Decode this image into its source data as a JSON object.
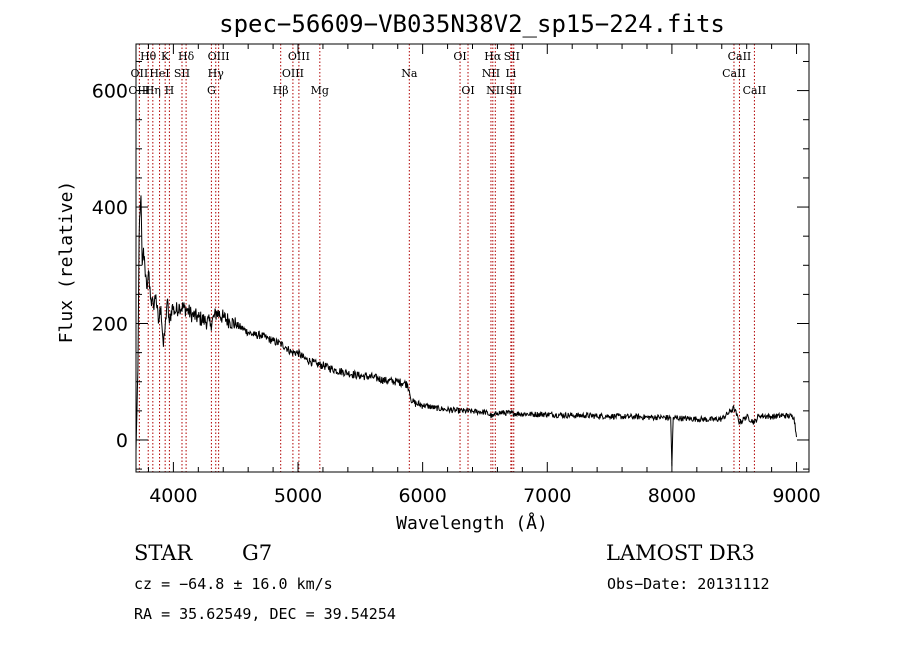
{
  "chart_data": {
    "type": "line",
    "title": "spec−56609−VB035N38V2_sp15−224.fits",
    "xlabel": "Wavelength (Å)",
    "ylabel": "Flux (relative)",
    "xlim": [
      3700,
      9100
    ],
    "ylim": [
      -55,
      680
    ],
    "x_ticks": [
      4000,
      5000,
      6000,
      7000,
      8000,
      9000
    ],
    "y_ticks": [
      0,
      200,
      400,
      600
    ],
    "series": [
      {
        "name": "flux",
        "x": [
          3700,
          3715,
          3725,
          3740,
          3750,
          3760,
          3775,
          3790,
          3800,
          3820,
          3840,
          3860,
          3880,
          3900,
          3920,
          3933,
          3950,
          3968,
          3990,
          4010,
          4050,
          4100,
          4150,
          4200,
          4250,
          4300,
          4350,
          4400,
          4450,
          4500,
          4550,
          4600,
          4650,
          4700,
          4750,
          4800,
          4861,
          4900,
          4950,
          5000,
          5050,
          5100,
          5150,
          5200,
          5300,
          5400,
          5500,
          5600,
          5700,
          5800,
          5850,
          5880,
          5893,
          5900,
          5920,
          5950,
          6000,
          6100,
          6200,
          6300,
          6400,
          6500,
          6563,
          6600,
          6700,
          6800,
          6900,
          7000,
          7100,
          7200,
          7300,
          7400,
          7500,
          7600,
          7700,
          7800,
          7900,
          7990,
          8000,
          8010,
          8100,
          8200,
          8300,
          8400,
          8498,
          8542,
          8600,
          8662,
          8700,
          8800,
          8900,
          8980,
          9000
        ],
        "y": [
          -20,
          120,
          350,
          420,
          300,
          330,
          280,
          260,
          290,
          240,
          230,
          250,
          200,
          230,
          160,
          190,
          240,
          200,
          230,
          220,
          230,
          225,
          215,
          210,
          205,
          200,
          220,
          210,
          205,
          198,
          192,
          185,
          180,
          180,
          175,
          170,
          165,
          160,
          150,
          150,
          140,
          135,
          130,
          128,
          120,
          115,
          110,
          108,
          102,
          100,
          98,
          95,
          85,
          75,
          65,
          62,
          60,
          55,
          52,
          50,
          49,
          48,
          40,
          47,
          46,
          45,
          44,
          44,
          43,
          42,
          42,
          41,
          41,
          40,
          40,
          39,
          39,
          38,
          -45,
          38,
          37,
          36,
          35,
          36,
          55,
          30,
          40,
          30,
          42,
          40,
          42,
          40,
          5
        ]
      }
    ],
    "spectral_lines": [
      {
        "name": "Hθ",
        "wavelength": 3798,
        "row": 0
      },
      {
        "name": "OII",
        "wavelength": 3727,
        "row": 1
      },
      {
        "name": "OIII",
        "wavelength": 3727,
        "row": 2
      },
      {
        "name": "K",
        "wavelength": 3934,
        "row": 0
      },
      {
        "name": "HeI",
        "wavelength": 3889,
        "row": 1
      },
      {
        "name": "Hη",
        "wavelength": 3835,
        "row": 2
      },
      {
        "name": "Hδ",
        "wavelength": 4102,
        "row": 0
      },
      {
        "name": "SII",
        "wavelength": 4069,
        "row": 1
      },
      {
        "name": "H",
        "wavelength": 3968,
        "row": 2
      },
      {
        "name": "OIII",
        "wavelength": 4363,
        "row": 0
      },
      {
        "name": "Hγ",
        "wavelength": 4340,
        "row": 1
      },
      {
        "name": "G",
        "wavelength": 4305,
        "row": 2
      },
      {
        "name": "OIII",
        "wavelength": 5007,
        "row": 0
      },
      {
        "name": "OIII",
        "wavelength": 4959,
        "row": 1
      },
      {
        "name": "Hβ",
        "wavelength": 4861,
        "row": 2
      },
      {
        "name": "Mg",
        "wavelength": 5175,
        "row": 2
      },
      {
        "name": "Na",
        "wavelength": 5893,
        "row": 1
      },
      {
        "name": "OI",
        "wavelength": 6300,
        "row": 0
      },
      {
        "name": "OI",
        "wavelength": 6364,
        "row": 2
      },
      {
        "name": "Hα",
        "wavelength": 6563,
        "row": 0
      },
      {
        "name": "SII",
        "wavelength": 6716,
        "row": 0
      },
      {
        "name": "NII",
        "wavelength": 6548,
        "row": 1
      },
      {
        "name": "Li",
        "wavelength": 6708,
        "row": 1
      },
      {
        "name": "NII",
        "wavelength": 6583,
        "row": 2
      },
      {
        "name": "SII",
        "wavelength": 6731,
        "row": 2
      },
      {
        "name": "CaII",
        "wavelength": 8542,
        "row": 0
      },
      {
        "name": "CaII",
        "wavelength": 8498,
        "row": 1
      },
      {
        "name": "CaII",
        "wavelength": 8662,
        "row": 2
      }
    ]
  },
  "info": {
    "object_class": "STAR",
    "subclass": "G7",
    "survey": "LAMOST DR3",
    "redshift": "cz = −64.8 ± 16.0 km/s",
    "obs_date": "Obs−Date: 20131112",
    "coords": "RA =  35.62549, DEC =  39.54254"
  },
  "colors": {
    "line_marker": "#b00000",
    "spectrum": "#000000",
    "background": "#ffffff"
  }
}
